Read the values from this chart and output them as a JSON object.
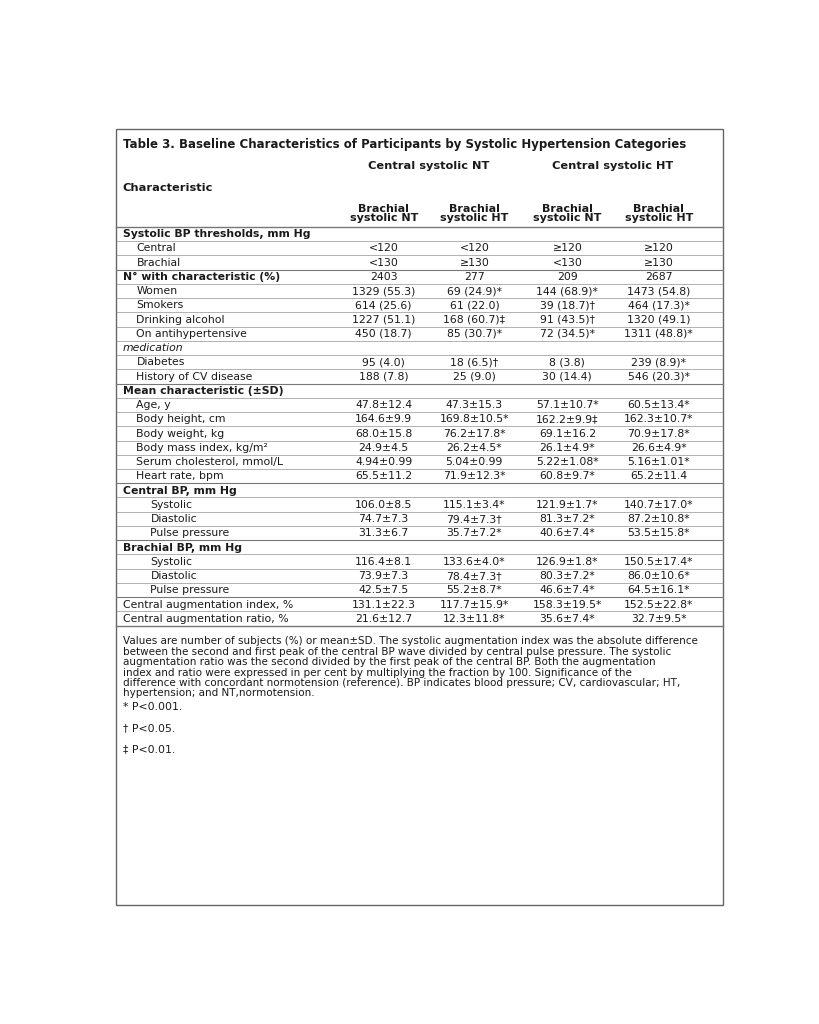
{
  "title": "Table 3. Baseline Characteristics of Participants by Systolic Hypertension Categories",
  "col_group1": "Central systolic NT",
  "col_group2": "Central systolic HT",
  "col_headers": [
    "Brachial\nsystolic NT",
    "Brachial\nsystolic HT",
    "Brachial\nsystolic NT",
    "Brachial\nsystolic HT"
  ],
  "char_label": "Characteristic",
  "rows": [
    {
      "label": "Systolic BP thresholds, mm Hg",
      "type": "section",
      "indent": 0,
      "values": [
        "",
        "",
        "",
        ""
      ]
    },
    {
      "label": "Central",
      "type": "data",
      "indent": 1,
      "values": [
        "<120",
        "<120",
        "≥120",
        "≥120"
      ]
    },
    {
      "label": "Brachial",
      "type": "data",
      "indent": 1,
      "values": [
        "<130",
        "≥130",
        "<130",
        "≥130"
      ]
    },
    {
      "label": "N° with characteristic (%)",
      "type": "bold",
      "indent": 0,
      "values": [
        "2403",
        "277",
        "209",
        "2687"
      ]
    },
    {
      "label": "Women",
      "type": "data",
      "indent": 1,
      "values": [
        "1329 (55.3)",
        "69 (24.9)*",
        "144 (68.9)*",
        "1473 (54.8)"
      ]
    },
    {
      "label": "Smokers",
      "type": "data",
      "indent": 1,
      "values": [
        "614 (25.6)",
        "61 (22.0)",
        "39 (18.7)†",
        "464 (17.3)*"
      ]
    },
    {
      "label": "Drinking alcohol",
      "type": "data",
      "indent": 1,
      "values": [
        "1227 (51.1)",
        "168 (60.7)‡",
        "91 (43.5)†",
        "1320 (49.1)"
      ]
    },
    {
      "label": "On antihypertensive",
      "type": "data",
      "indent": 1,
      "values": [
        "450 (18.7)",
        "85 (30.7)*",
        "72 (34.5)*",
        "1311 (48.8)*"
      ]
    },
    {
      "label": "medication",
      "type": "italic",
      "indent": 0,
      "values": [
        "",
        "",
        "",
        ""
      ]
    },
    {
      "label": "Diabetes",
      "type": "data",
      "indent": 1,
      "values": [
        "95 (4.0)",
        "18 (6.5)†",
        "8 (3.8)",
        "239 (8.9)*"
      ]
    },
    {
      "label": "History of CV disease",
      "type": "data",
      "indent": 1,
      "values": [
        "188 (7.8)",
        "25 (9.0)",
        "30 (14.4)",
        "546 (20.3)*"
      ]
    },
    {
      "label": "Mean characteristic (±SD)",
      "type": "section",
      "indent": 0,
      "values": [
        "",
        "",
        "",
        ""
      ]
    },
    {
      "label": "Age, y",
      "type": "data",
      "indent": 1,
      "values": [
        "47.8±12.4",
        "47.3±15.3",
        "57.1±10.7*",
        "60.5±13.4*"
      ]
    },
    {
      "label": "Body height, cm",
      "type": "data",
      "indent": 1,
      "values": [
        "164.6±9.9",
        "169.8±10.5*",
        "162.2±9.9‡",
        "162.3±10.7*"
      ]
    },
    {
      "label": "Body weight, kg",
      "type": "data",
      "indent": 1,
      "values": [
        "68.0±15.8",
        "76.2±17.8*",
        "69.1±16.2",
        "70.9±17.8*"
      ]
    },
    {
      "label": "Body mass index, kg/m²",
      "type": "data",
      "indent": 1,
      "values": [
        "24.9±4.5",
        "26.2±4.5*",
        "26.1±4.9*",
        "26.6±4.9*"
      ]
    },
    {
      "label": "Serum cholesterol, mmol/L",
      "type": "data",
      "indent": 1,
      "values": [
        "4.94±0.99",
        "5.04±0.99",
        "5.22±1.08*",
        "5.16±1.01*"
      ]
    },
    {
      "label": "Heart rate, bpm",
      "type": "data",
      "indent": 1,
      "values": [
        "65.5±11.2",
        "71.9±12.3*",
        "60.8±9.7*",
        "65.2±11.4"
      ]
    },
    {
      "label": "Central BP, mm Hg",
      "type": "section",
      "indent": 0,
      "values": [
        "",
        "",
        "",
        ""
      ]
    },
    {
      "label": "Systolic",
      "type": "data",
      "indent": 2,
      "values": [
        "106.0±8.5",
        "115.1±3.4*",
        "121.9±1.7*",
        "140.7±17.0*"
      ]
    },
    {
      "label": "Diastolic",
      "type": "data",
      "indent": 2,
      "values": [
        "74.7±7.3",
        "79.4±7.3†",
        "81.3±7.2*",
        "87.2±10.8*"
      ]
    },
    {
      "label": "Pulse pressure",
      "type": "data",
      "indent": 2,
      "values": [
        "31.3±6.7",
        "35.7±7.2*",
        "40.6±7.4*",
        "53.5±15.8*"
      ]
    },
    {
      "label": "Brachial BP, mm Hg",
      "type": "section",
      "indent": 0,
      "values": [
        "",
        "",
        "",
        ""
      ]
    },
    {
      "label": "Systolic",
      "type": "data",
      "indent": 2,
      "values": [
        "116.4±8.1",
        "133.6±4.0*",
        "126.9±1.8*",
        "150.5±17.4*"
      ]
    },
    {
      "label": "Diastolic",
      "type": "data",
      "indent": 2,
      "values": [
        "73.9±7.3",
        "78.4±7.3†",
        "80.3±7.2*",
        "86.0±10.6*"
      ]
    },
    {
      "label": "Pulse pressure",
      "type": "data",
      "indent": 2,
      "values": [
        "42.5±7.5",
        "55.2±8.7*",
        "46.6±7.4*",
        "64.5±16.1*"
      ]
    },
    {
      "label": "Central augmentation index, %",
      "type": "data",
      "indent": 0,
      "values": [
        "131.1±22.3",
        "117.7±15.9*",
        "158.3±19.5*",
        "152.5±22.8*"
      ]
    },
    {
      "label": "Central augmentation ratio, %",
      "type": "data",
      "indent": 0,
      "values": [
        "21.6±12.7",
        "12.3±11.8*",
        "35.6±7.4*",
        "32.7±9.5*"
      ]
    }
  ],
  "footnote": "Values are number of subjects (%) or mean±SD. The systolic augmentation index was the absolute difference between the second and first peak of the central BP wave divided by central pulse pressure. The systolic augmentation ratio was the second divided by the first peak of the central BP. Both the augmentation index and ratio were expressed in per cent by multiplying the fraction by 100. Significance of the difference with concordant normotension (reference). BP indicates blood pressure; CV, cardiovascular; HT, hypertension; and NT,normotension.",
  "footnote2": "* P<0.001.",
  "footnote3": "† P<0.05.",
  "footnote4": "‡ P<0.01.",
  "bg_color": "#ffffff",
  "border_color": "#666666",
  "text_color": "#1a1a1a",
  "line_color": "#777777"
}
